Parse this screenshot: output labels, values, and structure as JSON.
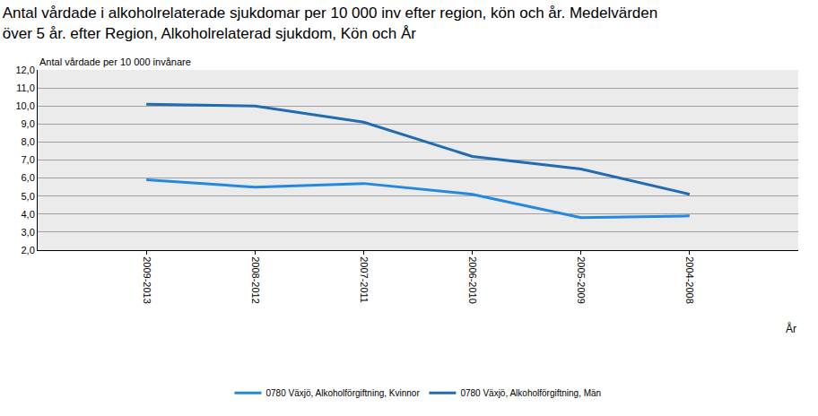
{
  "chart_data": {
    "type": "line",
    "title": [
      "Antal vårdade i alkoholrelaterade sjukdomar per 10 000 inv efter region, kön och år. Medelvärden",
      "över 5 år. efter Region, Alkoholrelaterad sjukdom, Kön och År"
    ],
    "y_label": "Antal vårdade per 10 000 invånare",
    "x_label": "År",
    "categories": [
      "2009-2013",
      "2008-2012",
      "2007-2011",
      "2006-2010",
      "2005-2009",
      "2004-2008"
    ],
    "series": [
      {
        "name": "0780 Växjö, Alkoholförgiftning, Kvinnor",
        "color": "#2389e0",
        "values": [
          5.9,
          5.5,
          5.7,
          5.1,
          3.8,
          3.9
        ]
      },
      {
        "name": "0780 Växjö, Alkoholförgiftning, Män",
        "color": "#1f6cb0",
        "values": [
          10.1,
          10.0,
          9.1,
          7.2,
          6.5,
          5.1
        ]
      }
    ],
    "ylim": [
      2,
      12
    ],
    "yticks": [
      {
        "value": 2,
        "label": "2,0"
      },
      {
        "value": 3,
        "label": "3,0"
      },
      {
        "value": 4,
        "label": "4,0"
      },
      {
        "value": 5,
        "label": "5,0"
      },
      {
        "value": 6,
        "label": "6,0"
      },
      {
        "value": 7,
        "label": "7,0"
      },
      {
        "value": 8,
        "label": "8,0"
      },
      {
        "value": 9,
        "label": "9,0"
      },
      {
        "value": 10,
        "label": "10,0"
      },
      {
        "value": 11,
        "label": "11,0"
      },
      {
        "value": 12,
        "label": "12,0"
      }
    ],
    "grid": true,
    "legend": "bottom"
  }
}
